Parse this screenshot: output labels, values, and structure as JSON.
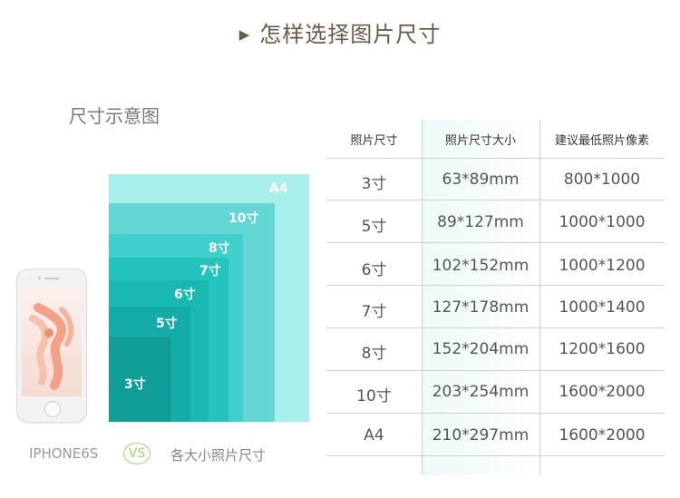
{
  "header": {
    "title": "怎样选择图片尺寸"
  },
  "diagram": {
    "title": "尺寸示意图",
    "labels": {
      "a4": "A4",
      "s10": "10寸",
      "s8": "8寸",
      "s7": "7寸",
      "s6": "6寸",
      "s5": "5寸",
      "s3": "3寸"
    },
    "colors": [
      "#a8eeea",
      "#62d6d2",
      "#3fd0cc",
      "#25c3be",
      "#1ab8b3",
      "#15aba6",
      "#109c97"
    ]
  },
  "legend": {
    "phone": "IPHONE6S",
    "vs": "VS",
    "all_sizes": "各大小照片尺寸"
  },
  "table": {
    "headers": [
      "照片尺寸",
      "照片尺寸大小",
      "建议最低照片像素"
    ],
    "rows": [
      [
        "3寸",
        "63*89mm",
        "800*1000"
      ],
      [
        "5寸",
        "89*127mm",
        "1000*1000"
      ],
      [
        "6寸",
        "102*152mm",
        "1000*1200"
      ],
      [
        "7寸",
        "127*178mm",
        "1000*1400"
      ],
      [
        "8寸",
        "152*204mm",
        "1200*1600"
      ],
      [
        "10寸",
        "203*254mm",
        "1600*2000"
      ],
      [
        "A4",
        "210*297mm",
        "1600*2000"
      ]
    ]
  }
}
